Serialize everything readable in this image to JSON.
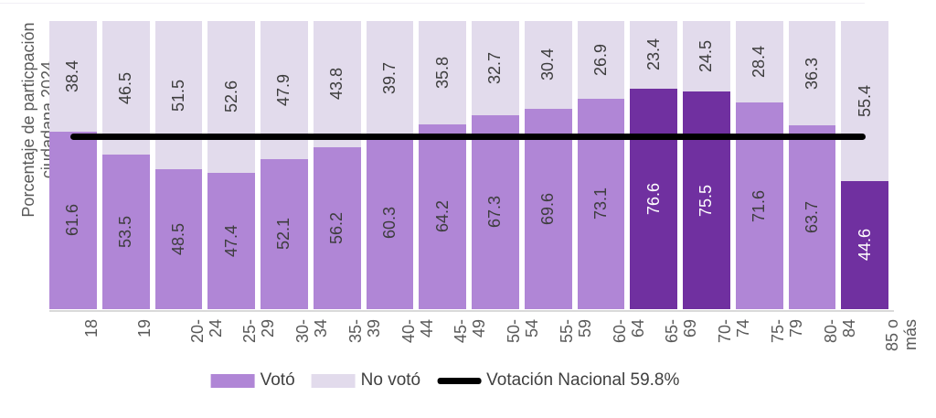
{
  "chart_data": {
    "type": "bar",
    "stacked": true,
    "ylabel": "Porcentaje de particpación ciudadana 2024",
    "ylabel_lines": [
      "Porcentaje de particpación",
      "ciudadana 2024"
    ],
    "categories": [
      "18",
      "19",
      "20-24",
      "25-29",
      "30-34",
      "35-39",
      "40-44",
      "45-49",
      "50-54",
      "55-59",
      "60-64",
      "65-69",
      "70-74",
      "75-79",
      "80-84",
      "85 o más"
    ],
    "categories_display": [
      "18",
      "19",
      "20-24",
      "25-29",
      "30-34",
      "35-39",
      "40-44",
      "45-49",
      "50-54",
      "55-59",
      "60-64",
      "65-69",
      "70-74",
      "75-79",
      "80-84",
      "85 o\nmás"
    ],
    "series": [
      {
        "name": "Votó",
        "values": [
          61.6,
          53.5,
          48.5,
          47.4,
          52.1,
          56.2,
          60.3,
          64.2,
          67.3,
          69.6,
          73.1,
          76.6,
          75.5,
          71.6,
          63.7,
          44.6
        ],
        "color": "#b086d6",
        "highlight_color": "#7030a0"
      },
      {
        "name": "No votó",
        "values": [
          38.4,
          46.5,
          51.5,
          52.6,
          47.9,
          43.8,
          39.7,
          35.8,
          32.7,
          30.4,
          26.9,
          23.4,
          24.5,
          28.4,
          36.3,
          55.4
        ],
        "color": "#e2dbec"
      }
    ],
    "highlighted_categories": [
      "65-69",
      "70-74",
      "85 o más"
    ],
    "reference_line": {
      "label": "Votación Nacional 59.8%",
      "value": 59.8,
      "color": "#000000"
    },
    "ylim": [
      0,
      100
    ],
    "grid": false,
    "legend_position": "bottom"
  },
  "legend": {
    "voto_label": "Votó",
    "no_voto_label": "No votó",
    "reference_label": "Votación Nacional 59.8%"
  },
  "colors": {
    "voto": "#b086d6",
    "voto_highlight": "#7030a0",
    "no_voto": "#e2dbec",
    "reference_line": "#000000",
    "axis_text": "#595959",
    "value_text": "#3d3d3d",
    "value_text_on_dark": "#ffffff",
    "axis_line": "#d9d9d9"
  }
}
